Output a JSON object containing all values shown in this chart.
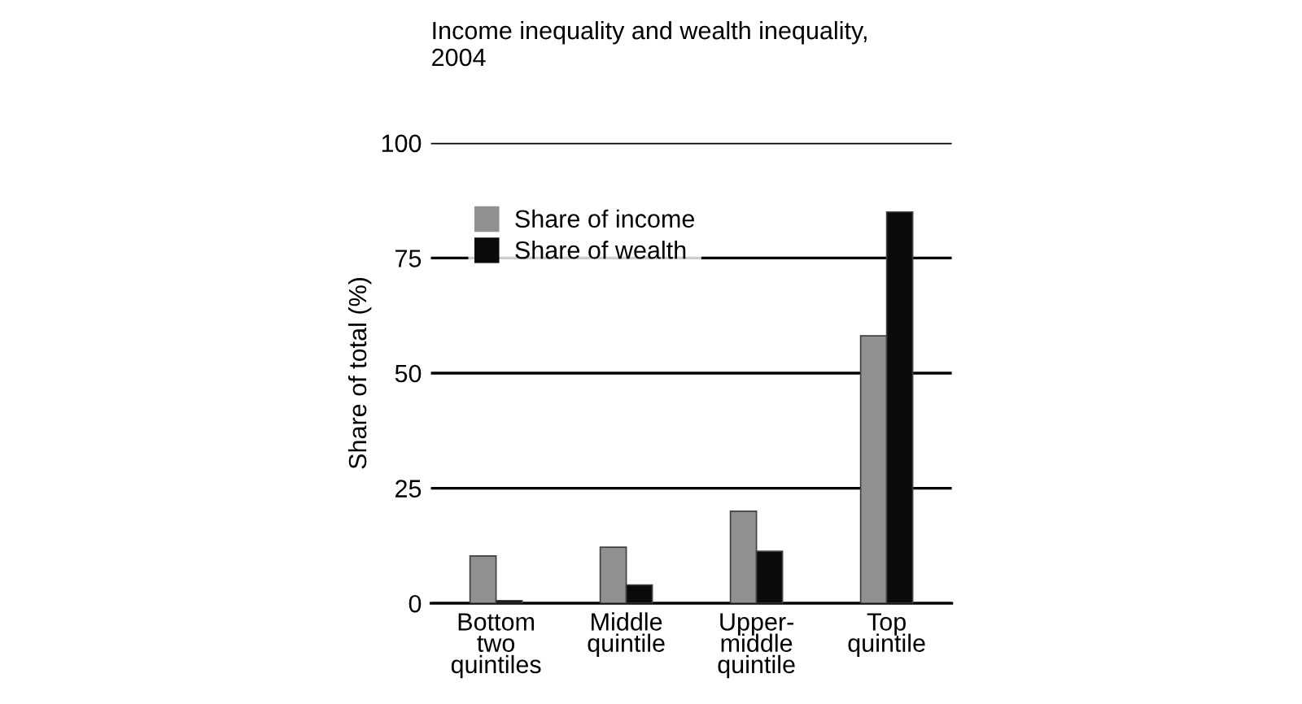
{
  "chart_data": {
    "type": "bar",
    "title": "Income inequality and wealth inequality,\n2004",
    "ylabel": "Share of total (%)",
    "categories": [
      "Bottom\ntwo\nquintiles",
      "Middle\nquintile",
      "Upper-\nmiddle\nquintile",
      "Top\nquintile"
    ],
    "series": [
      {
        "name": "Share of income",
        "color": "#909090",
        "values": [
          10.3,
          12.2,
          20.0,
          58.1
        ]
      },
      {
        "name": "Share of wealth",
        "color": "#0a0a0a",
        "values": [
          0.6,
          4.0,
          11.3,
          85.0
        ]
      }
    ],
    "ylim": [
      0,
      100
    ],
    "yticks": [
      0,
      25,
      50,
      75,
      100
    ],
    "grid": "y",
    "legend": "top left"
  }
}
